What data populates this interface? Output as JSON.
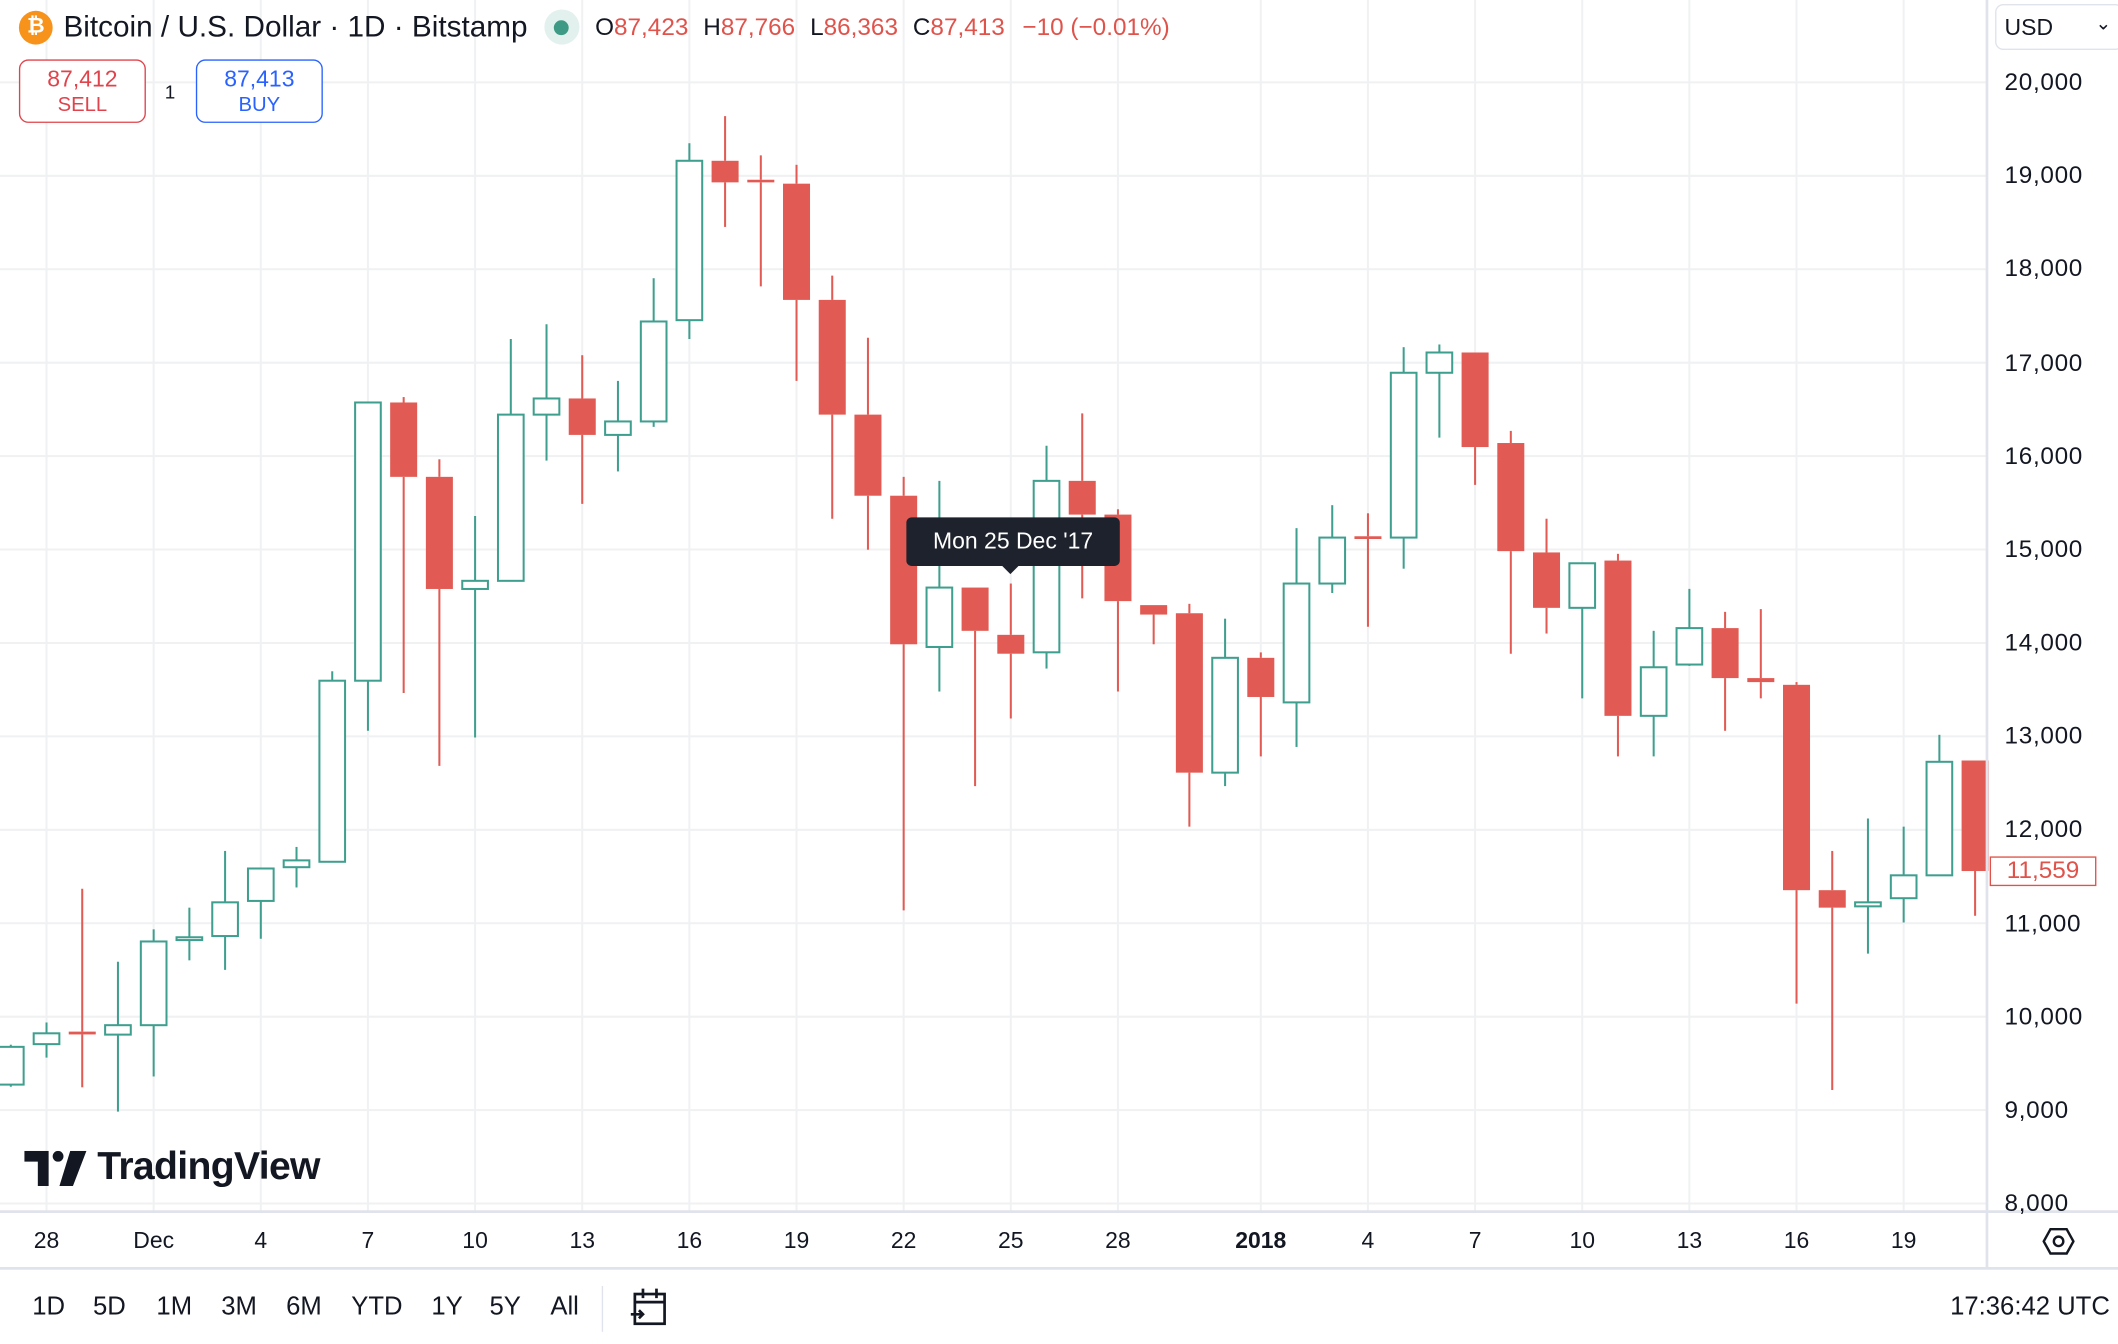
{
  "header": {
    "symbol_icon": "bitcoin-icon",
    "title": "Bitcoin / U.S. Dollar · 1D · Bitstamp",
    "ohlc": {
      "o_label": "O",
      "o": "87,423",
      "h_label": "H",
      "h": "87,766",
      "l_label": "L",
      "l": "86,363",
      "c_label": "C",
      "c": "87,413",
      "change": "−10 (−0.01%)"
    }
  },
  "trade": {
    "sell_price": "87,412",
    "sell_label": "SELL",
    "qty": "1",
    "buy_price": "87,413",
    "buy_label": "BUY"
  },
  "currency": "USD",
  "price_tag": "11,559",
  "tooltip": "Mon 25 Dec '17",
  "logo": "TradingView",
  "range_buttons": [
    "1D",
    "5D",
    "1M",
    "3M",
    "6M",
    "YTD",
    "1Y",
    "5Y",
    "All"
  ],
  "clock": "17:36:42 UTC",
  "colors": {
    "up": "#3f9f8f",
    "down": "#e15a53",
    "grid": "#f0f1f3"
  },
  "chart_data": {
    "type": "candlestick",
    "y_ticks": [
      "20,000",
      "19,000",
      "18,000",
      "17,000",
      "16,000",
      "15,000",
      "14,000",
      "13,000",
      "12,000",
      "11,000",
      "10,000",
      "9,000",
      "8,000"
    ],
    "ylim": [
      8000,
      20000
    ],
    "x_ticks": [
      {
        "label": "28",
        "i": 1
      },
      {
        "label": "Dec",
        "i": 4
      },
      {
        "label": "4",
        "i": 7
      },
      {
        "label": "7",
        "i": 10
      },
      {
        "label": "10",
        "i": 13
      },
      {
        "label": "13",
        "i": 16
      },
      {
        "label": "16",
        "i": 19
      },
      {
        "label": "19",
        "i": 22
      },
      {
        "label": "22",
        "i": 25
      },
      {
        "label": "25",
        "i": 28
      },
      {
        "label": "28",
        "i": 31
      },
      {
        "label": "2018",
        "i": 35,
        "bold": true
      },
      {
        "label": "4",
        "i": 38
      },
      {
        "label": "7",
        "i": 41
      },
      {
        "label": "10",
        "i": 44
      },
      {
        "label": "13",
        "i": 47
      },
      {
        "label": "16",
        "i": 50
      },
      {
        "label": "19",
        "i": 53
      }
    ],
    "candles": [
      {
        "d": "2017-11-27",
        "o": 9273,
        "h": 9700,
        "l": 9250,
        "c": 9677
      },
      {
        "d": "2017-11-28",
        "o": 9706,
        "h": 9938,
        "l": 9562,
        "c": 9822
      },
      {
        "d": "2017-11-29",
        "o": 9840,
        "h": 11369,
        "l": 9244,
        "c": 9810
      },
      {
        "d": "2017-11-30",
        "o": 9808,
        "h": 10588,
        "l": 8984,
        "c": 9909
      },
      {
        "d": "2017-12-01",
        "o": 9909,
        "h": 10935,
        "l": 9360,
        "c": 10805
      },
      {
        "d": "2017-12-02",
        "o": 10820,
        "h": 11167,
        "l": 10603,
        "c": 10850
      },
      {
        "d": "2017-12-03",
        "o": 10863,
        "h": 11774,
        "l": 10501,
        "c": 11224
      },
      {
        "d": "2017-12-04",
        "o": 11239,
        "h": 11586,
        "l": 10834,
        "c": 11586
      },
      {
        "d": "2017-12-05",
        "o": 11600,
        "h": 11817,
        "l": 11383,
        "c": 11673
      },
      {
        "d": "2017-12-06",
        "o": 11658,
        "h": 13697,
        "l": 11658,
        "c": 13596
      },
      {
        "d": "2017-12-07",
        "o": 13596,
        "h": 16574,
        "l": 13060,
        "c": 16574
      },
      {
        "d": "2017-12-08",
        "o": 16574,
        "h": 16632,
        "l": 13465,
        "c": 15778
      },
      {
        "d": "2017-12-09",
        "o": 15778,
        "h": 15966,
        "l": 12685,
        "c": 14578
      },
      {
        "d": "2017-12-10",
        "o": 14578,
        "h": 15359,
        "l": 12988,
        "c": 14665
      },
      {
        "d": "2017-12-11",
        "o": 14665,
        "h": 17253,
        "l": 14665,
        "c": 16444
      },
      {
        "d": "2017-12-12",
        "o": 16444,
        "h": 17412,
        "l": 15952,
        "c": 16617
      },
      {
        "d": "2017-12-13",
        "o": 16617,
        "h": 17080,
        "l": 15489,
        "c": 16227
      },
      {
        "d": "2017-12-14",
        "o": 16227,
        "h": 16805,
        "l": 15836,
        "c": 16371
      },
      {
        "d": "2017-12-15",
        "o": 16371,
        "h": 17904,
        "l": 16313,
        "c": 17441
      },
      {
        "d": "2017-12-16",
        "o": 17455,
        "h": 19349,
        "l": 17253,
        "c": 19161
      },
      {
        "d": "2017-12-17",
        "o": 19161,
        "h": 19639,
        "l": 18453,
        "c": 18930
      },
      {
        "d": "2017-12-18",
        "o": 18958,
        "h": 19219,
        "l": 17817,
        "c": 18930
      },
      {
        "d": "2017-12-19",
        "o": 18916,
        "h": 19118,
        "l": 16805,
        "c": 17672
      },
      {
        "d": "2017-12-20",
        "o": 17672,
        "h": 17932,
        "l": 15330,
        "c": 16444
      },
      {
        "d": "2017-12-21",
        "o": 16444,
        "h": 17267,
        "l": 14998,
        "c": 15576
      },
      {
        "d": "2017-12-22",
        "o": 15576,
        "h": 15778,
        "l": 11138,
        "c": 13986
      },
      {
        "d": "2017-12-23",
        "o": 13957,
        "h": 15735,
        "l": 13480,
        "c": 14593
      },
      {
        "d": "2017-12-24",
        "o": 14593,
        "h": 14593,
        "l": 12468,
        "c": 14130
      },
      {
        "d": "2017-12-25",
        "o": 14087,
        "h": 14636,
        "l": 13191,
        "c": 13885
      },
      {
        "d": "2017-12-26",
        "o": 13900,
        "h": 16111,
        "l": 13726,
        "c": 15735
      },
      {
        "d": "2017-12-27",
        "o": 15735,
        "h": 16458,
        "l": 14477,
        "c": 15374
      },
      {
        "d": "2017-12-28",
        "o": 15374,
        "h": 15431,
        "l": 13480,
        "c": 14448
      },
      {
        "d": "2017-12-29",
        "o": 14405,
        "h": 14405,
        "l": 13986,
        "c": 14304
      },
      {
        "d": "2017-12-30",
        "o": 14318,
        "h": 14419,
        "l": 12034,
        "c": 12612
      },
      {
        "d": "2017-12-31",
        "o": 12612,
        "h": 14260,
        "l": 12468,
        "c": 13841
      },
      {
        "d": "2018-01-01",
        "o": 13841,
        "h": 13899,
        "l": 12786,
        "c": 13422
      },
      {
        "d": "2018-01-02",
        "o": 13364,
        "h": 15229,
        "l": 12887,
        "c": 14636
      },
      {
        "d": "2018-01-03",
        "o": 14636,
        "h": 15475,
        "l": 14535,
        "c": 15128
      },
      {
        "d": "2018-01-04",
        "o": 15142,
        "h": 15388,
        "l": 14174,
        "c": 15113
      },
      {
        "d": "2018-01-05",
        "o": 15128,
        "h": 17166,
        "l": 14795,
        "c": 16892
      },
      {
        "d": "2018-01-06",
        "o": 16892,
        "h": 17195,
        "l": 16198,
        "c": 17109
      },
      {
        "d": "2018-01-07",
        "o": 17109,
        "h": 17109,
        "l": 15692,
        "c": 16097
      },
      {
        "d": "2018-01-08",
        "o": 16140,
        "h": 16270,
        "l": 13885,
        "c": 14983
      },
      {
        "d": "2018-01-09",
        "o": 14969,
        "h": 15330,
        "l": 14101,
        "c": 14376
      },
      {
        "d": "2018-01-10",
        "o": 14376,
        "h": 14853,
        "l": 13407,
        "c": 14853
      },
      {
        "d": "2018-01-11",
        "o": 14882,
        "h": 14954,
        "l": 12786,
        "c": 13220
      },
      {
        "d": "2018-01-12",
        "o": 13220,
        "h": 14130,
        "l": 12786,
        "c": 13740
      },
      {
        "d": "2018-01-13",
        "o": 13769,
        "h": 14579,
        "l": 13755,
        "c": 14159
      },
      {
        "d": "2018-01-14",
        "o": 14159,
        "h": 14333,
        "l": 13060,
        "c": 13624
      },
      {
        "d": "2018-01-15",
        "o": 13624,
        "h": 14362,
        "l": 13407,
        "c": 13581
      },
      {
        "d": "2018-01-16",
        "o": 13552,
        "h": 13581,
        "l": 10140,
        "c": 11354
      },
      {
        "d": "2018-01-17",
        "o": 11354,
        "h": 11774,
        "l": 9215,
        "c": 11167
      },
      {
        "d": "2018-01-18",
        "o": 11181,
        "h": 12121,
        "l": 10675,
        "c": 11224
      },
      {
        "d": "2018-01-19",
        "o": 11268,
        "h": 12034,
        "l": 11008,
        "c": 11513
      },
      {
        "d": "2018-01-20",
        "o": 11513,
        "h": 13017,
        "l": 11513,
        "c": 12728
      },
      {
        "d": "2018-01-21",
        "o": 12742,
        "h": 12742,
        "l": 11080,
        "c": 11559
      }
    ]
  }
}
